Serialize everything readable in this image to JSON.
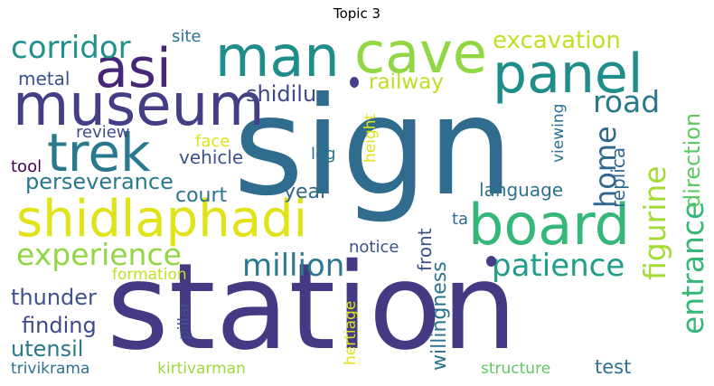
{
  "title": "Topic 3",
  "colors": {
    "dark_purple": "#440154",
    "indigo": "#433e85",
    "blue": "#2f6c8e",
    "teal": "#1f8d89",
    "green": "#35b779",
    "lime": "#90d743",
    "yellow": "#dfe318"
  },
  "words": [
    {
      "text": "sign",
      "weight": 1.0
    },
    {
      "text": "station",
      "weight": 0.96
    },
    {
      "text": "board",
      "weight": 0.4
    },
    {
      "text": "museum",
      "weight": 0.35
    },
    {
      "text": "asi",
      "weight": 0.35
    },
    {
      "text": "man",
      "weight": 0.34
    },
    {
      "text": "cave",
      "weight": 0.34
    },
    {
      "text": "panel",
      "weight": 0.33
    },
    {
      "text": "shidlaphadi",
      "weight": 0.32
    },
    {
      "text": "trek",
      "weight": 0.32
    },
    {
      "text": "corridor",
      "weight": 0.2
    },
    {
      "text": "experience",
      "weight": 0.2
    },
    {
      "text": "million",
      "weight": 0.2
    },
    {
      "text": "patience",
      "weight": 0.2
    },
    {
      "text": "entrance",
      "weight": 0.2
    },
    {
      "text": "figurine",
      "weight": 0.2
    },
    {
      "text": "home",
      "weight": 0.19
    },
    {
      "text": "road",
      "weight": 0.18
    },
    {
      "text": "excavation",
      "weight": 0.14
    },
    {
      "text": "railway",
      "weight": 0.14
    },
    {
      "text": "shidilu",
      "weight": 0.14
    },
    {
      "text": "direction",
      "weight": 0.13
    },
    {
      "text": "perseverance",
      "weight": 0.13
    },
    {
      "text": "thunder",
      "weight": 0.13
    },
    {
      "text": "finding",
      "weight": 0.13
    },
    {
      "text": "utensil",
      "weight": 0.13
    },
    {
      "text": "metal",
      "weight": 0.12
    },
    {
      "text": "court",
      "weight": 0.12
    },
    {
      "text": "year",
      "weight": 0.12
    },
    {
      "text": "language",
      "weight": 0.12
    },
    {
      "text": "replica",
      "weight": 0.12
    },
    {
      "text": "vehicle",
      "weight": 0.12
    },
    {
      "text": "review",
      "weight": 0.11
    },
    {
      "text": "tool",
      "weight": 0.11
    },
    {
      "text": "leg",
      "weight": 0.11
    },
    {
      "text": "site",
      "weight": 0.11
    },
    {
      "text": "face",
      "weight": 0.11
    },
    {
      "text": "height",
      "weight": 0.11
    },
    {
      "text": "viewing",
      "weight": 0.11
    },
    {
      "text": "notice",
      "weight": 0.11
    },
    {
      "text": "front",
      "weight": 0.12
    },
    {
      "text": "willingness",
      "weight": 0.12
    },
    {
      "text": "ta",
      "weight": 0.11
    },
    {
      "text": "formation",
      "weight": 0.1
    },
    {
      "text": "pillar",
      "weight": 0.1
    },
    {
      "text": "hertiage",
      "weight": 0.1
    },
    {
      "text": "trivikrama",
      "weight": 0.1
    },
    {
      "text": "kirtivarman",
      "weight": 0.1
    },
    {
      "text": "structure",
      "weight": 0.1
    },
    {
      "text": "test",
      "weight": 0.12
    }
  ]
}
